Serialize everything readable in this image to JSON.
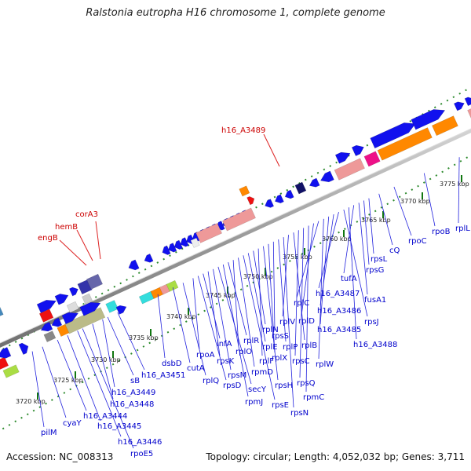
{
  "title": "Ralstonia eutropha H16 chromosome 1, complete genome",
  "footer": {
    "accession": "Accession: NC_008313",
    "topology": "Topology: circular; Length: 4,052,032 bp; Genes: 3,711"
  },
  "colors": {
    "backbone": "#999999",
    "plus_strand": "#0000ee",
    "rna_pink": "#ee9999",
    "rna_orange": "#ff8800",
    "highlight_label": "#cc0000",
    "gene_label": "#0000cc",
    "tick_green": "#006600"
  },
  "ticks": [
    {
      "text": "3720 kbp"
    },
    {
      "text": "3725 kbp"
    },
    {
      "text": "3730 kbp"
    },
    {
      "text": "3735 kbp"
    },
    {
      "text": "3740 kbp"
    },
    {
      "text": "3745 kbp"
    },
    {
      "text": "3750 kbp"
    },
    {
      "text": "3755 kbp"
    },
    {
      "text": "3760 kbp"
    },
    {
      "text": "3765 kbp"
    },
    {
      "text": "3770 kbp"
    },
    {
      "text": "3775 kbp"
    }
  ],
  "highlighted_genes": [
    "h16_A3489",
    "corA3",
    "hemB",
    "engB"
  ],
  "gene_labels": [
    "pilM",
    "cyaY",
    "h16_A3444",
    "h16_A3445",
    "h16_A3446",
    "rpoE5",
    "h16_A3448",
    "h16_A3449",
    "sB",
    "h16_A3451",
    "dsbD",
    "cutA",
    "rplQ",
    "rpoA",
    "rpsD",
    "infA",
    "rpsK",
    "rpsM",
    "secY",
    "rpmJ",
    "rplR",
    "rplO",
    "rpmD",
    "rpsE",
    "rplE",
    "rplN",
    "rplF",
    "rpsH",
    "rplX",
    "rpsS",
    "rplP",
    "rpsN",
    "rplV",
    "rplB",
    "rpsC",
    "rpsQ",
    "rpmC",
    "rplD",
    "rplC",
    "rplW",
    "h16_A3485",
    "h16_A3486",
    "h16_A3487",
    "rpsJ",
    "h16_A3488",
    "tufA",
    "fusA1",
    "rpsG",
    "rpsL",
    "cQ",
    "rpoC",
    "rpoB",
    "rplL"
  ]
}
